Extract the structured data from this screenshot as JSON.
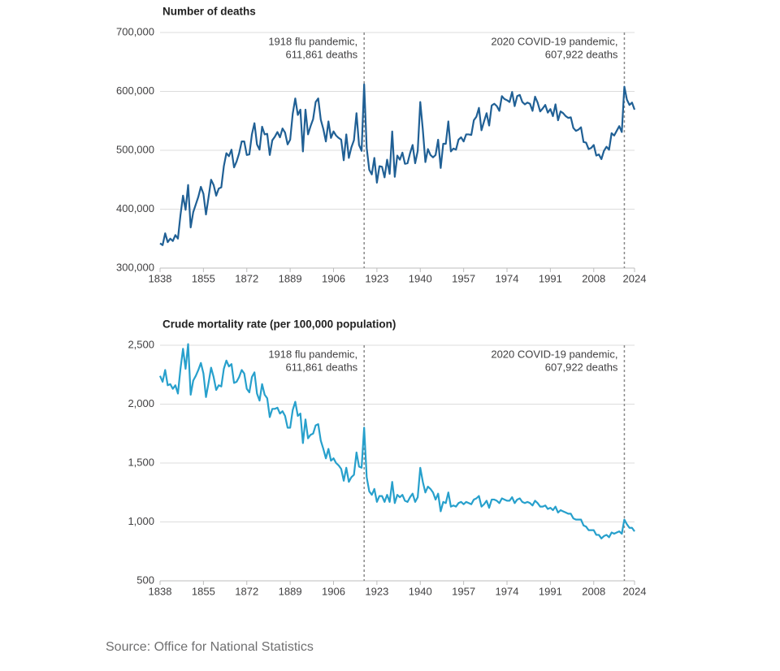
{
  "chart_data": [
    {
      "type": "line",
      "title": "Number of deaths",
      "xlim": [
        1838,
        2024
      ],
      "xticks": [
        1838,
        1855,
        1872,
        1889,
        1906,
        1923,
        1940,
        1957,
        1974,
        1991,
        2008,
        2024
      ],
      "ylim": [
        300000,
        700000
      ],
      "yticks": [
        {
          "value": 300000,
          "label": "300,000"
        },
        {
          "value": 400000,
          "label": "400,000"
        },
        {
          "value": 500000,
          "label": "500,000"
        },
        {
          "value": 600000,
          "label": "600,000"
        },
        {
          "value": 700000,
          "label": "700,000"
        }
      ],
      "grid": true,
      "x": [
        1838,
        1839,
        1840,
        1841,
        1842,
        1843,
        1844,
        1845,
        1846,
        1847,
        1848,
        1849,
        1850,
        1851,
        1852,
        1853,
        1854,
        1855,
        1856,
        1857,
        1858,
        1859,
        1860,
        1861,
        1862,
        1863,
        1864,
        1865,
        1866,
        1867,
        1868,
        1869,
        1870,
        1871,
        1872,
        1873,
        1874,
        1875,
        1876,
        1877,
        1878,
        1879,
        1880,
        1881,
        1882,
        1883,
        1884,
        1885,
        1886,
        1887,
        1888,
        1889,
        1890,
        1891,
        1892,
        1893,
        1894,
        1895,
        1896,
        1897,
        1898,
        1899,
        1900,
        1901,
        1902,
        1903,
        1904,
        1905,
        1906,
        1907,
        1908,
        1909,
        1910,
        1911,
        1912,
        1913,
        1914,
        1915,
        1916,
        1917,
        1918,
        1919,
        1920,
        1921,
        1922,
        1923,
        1924,
        1925,
        1926,
        1927,
        1928,
        1929,
        1930,
        1931,
        1932,
        1933,
        1934,
        1935,
        1936,
        1937,
        1938,
        1939,
        1940,
        1941,
        1942,
        1943,
        1944,
        1945,
        1946,
        1947,
        1948,
        1949,
        1950,
        1951,
        1952,
        1953,
        1954,
        1955,
        1956,
        1957,
        1958,
        1959,
        1960,
        1961,
        1962,
        1963,
        1964,
        1965,
        1966,
        1967,
        1968,
        1969,
        1970,
        1971,
        1972,
        1973,
        1974,
        1975,
        1976,
        1977,
        1978,
        1979,
        1980,
        1981,
        1982,
        1983,
        1984,
        1985,
        1986,
        1987,
        1988,
        1989,
        1990,
        1991,
        1992,
        1993,
        1994,
        1995,
        1996,
        1997,
        1998,
        1999,
        2000,
        2001,
        2002,
        2003,
        2004,
        2005,
        2006,
        2007,
        2008,
        2009,
        2010,
        2011,
        2012,
        2013,
        2014,
        2015,
        2016,
        2017,
        2018,
        2019,
        2020,
        2021,
        2022,
        2023,
        2024
      ],
      "series": [
        {
          "color": "#206095",
          "values": [
            342000,
            339000,
            359000,
            344000,
            350000,
            346000,
            356000,
            350000,
            390000,
            423000,
            399000,
            441000,
            369000,
            395000,
            408000,
            421000,
            438000,
            426000,
            391000,
            420000,
            450000,
            441000,
            423000,
            435000,
            437000,
            473000,
            495000,
            490000,
            501000,
            471000,
            481000,
            495000,
            515000,
            515000,
            492000,
            493000,
            527000,
            546000,
            510000,
            501000,
            540000,
            527000,
            528000,
            492000,
            517000,
            523000,
            531000,
            522000,
            537000,
            530000,
            510000,
            518000,
            562000,
            588000,
            560000,
            569000,
            498000,
            569000,
            527000,
            541000,
            553000,
            582000,
            588000,
            552000,
            536000,
            515000,
            549000,
            521000,
            532000,
            525000,
            521000,
            518000,
            483000,
            527000,
            487000,
            505000,
            517000,
            563000,
            509000,
            499000,
            611861,
            504000,
            467000,
            459000,
            487000,
            445000,
            473000,
            472000,
            454000,
            484000,
            460000,
            532000,
            455000,
            491000,
            484000,
            496000,
            477000,
            478000,
            495000,
            509000,
            478000,
            499000,
            582000,
            535000,
            480000,
            502000,
            492000,
            488000,
            492000,
            518000,
            470000,
            511000,
            511000,
            549000,
            498000,
            503000,
            501000,
            518000,
            522000,
            515000,
            527000,
            527000,
            526000,
            551000,
            557000,
            572000,
            534000,
            549000,
            563000,
            542000,
            576000,
            579000,
            575000,
            567000,
            592000,
            587000,
            585000,
            582000,
            599000,
            575000,
            592000,
            594000,
            582000,
            578000,
            581000,
            579000,
            567000,
            591000,
            581000,
            566000,
            571000,
            577000,
            564000,
            570000,
            558000,
            578000,
            551000,
            566000,
            563000,
            558000,
            555000,
            556000,
            538000,
            533000,
            535000,
            539000,
            514000,
            513000,
            502000,
            504000,
            509000,
            491000,
            493000,
            485000,
            499000,
            506000,
            501000,
            529000,
            525000,
            533000,
            541000,
            531000,
            607922,
            586000,
            577000,
            581000,
            569000
          ]
        }
      ],
      "annotations": [
        {
          "x": 1918,
          "lines": [
            "1918 flu pandemic,",
            "611,861 deaths"
          ]
        },
        {
          "x": 2020,
          "lines": [
            "2020 COVID-19 pandemic,",
            "607,922 deaths"
          ]
        }
      ]
    },
    {
      "type": "line",
      "title": "Crude mortality rate (per 100,000 population)",
      "xlim": [
        1838,
        2024
      ],
      "xticks": [
        1838,
        1855,
        1872,
        1889,
        1906,
        1923,
        1940,
        1957,
        1974,
        1991,
        2008,
        2024
      ],
      "ylim": [
        500,
        2500
      ],
      "yticks": [
        500,
        {
          "value": 1000,
          "label": "1,000"
        },
        {
          "value": 1500,
          "label": "1,500"
        },
        {
          "value": 2000,
          "label": "2,000"
        },
        {
          "value": 2500,
          "label": "2,500"
        }
      ],
      "grid": true,
      "x": [
        1838,
        1839,
        1840,
        1841,
        1842,
        1843,
        1844,
        1845,
        1846,
        1847,
        1848,
        1849,
        1850,
        1851,
        1852,
        1853,
        1854,
        1855,
        1856,
        1857,
        1858,
        1859,
        1860,
        1861,
        1862,
        1863,
        1864,
        1865,
        1866,
        1867,
        1868,
        1869,
        1870,
        1871,
        1872,
        1873,
        1874,
        1875,
        1876,
        1877,
        1878,
        1879,
        1880,
        1881,
        1882,
        1883,
        1884,
        1885,
        1886,
        1887,
        1888,
        1889,
        1890,
        1891,
        1892,
        1893,
        1894,
        1895,
        1896,
        1897,
        1898,
        1899,
        1900,
        1901,
        1902,
        1903,
        1904,
        1905,
        1906,
        1907,
        1908,
        1909,
        1910,
        1911,
        1912,
        1913,
        1914,
        1915,
        1916,
        1917,
        1918,
        1919,
        1920,
        1921,
        1922,
        1923,
        1924,
        1925,
        1926,
        1927,
        1928,
        1929,
        1930,
        1931,
        1932,
        1933,
        1934,
        1935,
        1936,
        1937,
        1938,
        1939,
        1940,
        1941,
        1942,
        1943,
        1944,
        1945,
        1946,
        1947,
        1948,
        1949,
        1950,
        1951,
        1952,
        1953,
        1954,
        1955,
        1956,
        1957,
        1958,
        1959,
        1960,
        1961,
        1962,
        1963,
        1964,
        1965,
        1966,
        1967,
        1968,
        1969,
        1970,
        1971,
        1972,
        1973,
        1974,
        1975,
        1976,
        1977,
        1978,
        1979,
        1980,
        1981,
        1982,
        1983,
        1984,
        1985,
        1986,
        1987,
        1988,
        1989,
        1990,
        1991,
        1992,
        1993,
        1994,
        1995,
        1996,
        1997,
        1998,
        1999,
        2000,
        2001,
        2002,
        2003,
        2004,
        2005,
        2006,
        2007,
        2008,
        2009,
        2010,
        2011,
        2012,
        2013,
        2014,
        2015,
        2016,
        2017,
        2018,
        2019,
        2020,
        2021,
        2022,
        2023,
        2024
      ],
      "series": [
        {
          "color": "#27a0cc",
          "values": [
            2240,
            2190,
            2290,
            2160,
            2170,
            2130,
            2160,
            2090,
            2300,
            2470,
            2300,
            2510,
            2080,
            2200,
            2240,
            2290,
            2350,
            2260,
            2060,
            2180,
            2310,
            2230,
            2120,
            2160,
            2150,
            2300,
            2370,
            2320,
            2340,
            2180,
            2190,
            2230,
            2290,
            2260,
            2130,
            2100,
            2230,
            2270,
            2090,
            2030,
            2170,
            2080,
            2050,
            1890,
            1960,
            1960,
            1970,
            1920,
            1940,
            1900,
            1800,
            1800,
            1950,
            2020,
            1900,
            1920,
            1670,
            1870,
            1710,
            1740,
            1750,
            1820,
            1830,
            1690,
            1620,
            1540,
            1620,
            1520,
            1540,
            1500,
            1480,
            1450,
            1350,
            1460,
            1340,
            1380,
            1400,
            1590,
            1470,
            1460,
            1800,
            1380,
            1260,
            1230,
            1280,
            1170,
            1220,
            1220,
            1170,
            1230,
            1170,
            1340,
            1160,
            1230,
            1210,
            1230,
            1180,
            1170,
            1210,
            1240,
            1170,
            1210,
            1460,
            1340,
            1250,
            1300,
            1280,
            1250,
            1190,
            1240,
            1090,
            1170,
            1160,
            1250,
            1130,
            1140,
            1130,
            1160,
            1170,
            1150,
            1170,
            1160,
            1150,
            1190,
            1200,
            1220,
            1130,
            1150,
            1180,
            1120,
            1190,
            1190,
            1180,
            1160,
            1200,
            1190,
            1180,
            1180,
            1210,
            1160,
            1190,
            1200,
            1170,
            1160,
            1170,
            1160,
            1140,
            1180,
            1160,
            1130,
            1130,
            1140,
            1110,
            1120,
            1100,
            1130,
            1080,
            1100,
            1090,
            1080,
            1070,
            1070,
            1030,
            1020,
            1020,
            1020,
            970,
            960,
            930,
            930,
            930,
            890,
            890,
            860,
            880,
            890,
            870,
            910,
            900,
            910,
            920,
            900,
            1020,
            980,
            950,
            950,
            920
          ]
        }
      ],
      "annotations": [
        {
          "x": 1918,
          "lines": [
            "1918 flu pandemic,",
            "611,861 deaths"
          ]
        },
        {
          "x": 2020,
          "lines": [
            "2020 COVID-19 pandemic,",
            "607,922 deaths"
          ]
        }
      ]
    }
  ],
  "source": "Source: Office for National Statistics"
}
